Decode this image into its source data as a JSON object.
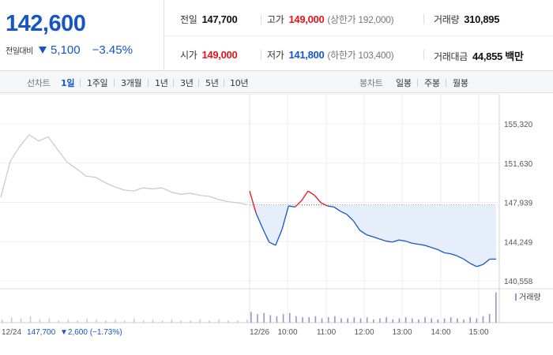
{
  "summary": {
    "current_price": "142,600",
    "change_label": "전일대비",
    "change_value": "5,100",
    "change_percent": "−3.45%",
    "prev_close_label": "전일",
    "prev_close": "147,700",
    "open_label": "시가",
    "open": "149,000",
    "high_label": "고가",
    "high": "149,000",
    "upper_limit": "(상한가 192,000)",
    "low_label": "저가",
    "low": "141,800",
    "lower_limit": "(하한가 103,400)",
    "volume_label": "거래량",
    "volume": "310,895",
    "amount_label": "거래대금",
    "amount": "44,855 백만"
  },
  "periods": {
    "title": "선차트",
    "items": [
      "1일",
      "1주일",
      "3개월",
      "1년",
      "3년",
      "5년",
      "10년"
    ],
    "active": "1일"
  },
  "candles": {
    "title": "봉차트",
    "items": [
      "일봉",
      "주봉",
      "월봉"
    ]
  },
  "colors": {
    "up": "#e3141c",
    "down": "#1655c6",
    "prev_day_line": "#c8c8c8",
    "fill": "#e6eefb"
  },
  "chart_data": {
    "type": "line",
    "y_ticks": [
      "155,320",
      "151,630",
      "147,939",
      "144,249",
      "140,558"
    ],
    "ylim": [
      140558,
      155320
    ],
    "prev_close_ref": 147700,
    "x_ticks": [
      "12/26",
      "10:00",
      "11:00",
      "12:00",
      "13:00",
      "14:00",
      "15:00"
    ],
    "prev_day": {
      "date": "12/24",
      "close": "147,700",
      "change": "▼2,600 (−1.73%)",
      "series": [
        148400,
        151800,
        153200,
        154300,
        153700,
        154100,
        152900,
        151700,
        151100,
        150400,
        150300,
        149800,
        149400,
        149100,
        149000,
        149300,
        149200,
        149300,
        148900,
        148700,
        148800,
        148600,
        148500,
        148200,
        148000,
        147900,
        147700
      ]
    },
    "today": {
      "series": [
        149000,
        146900,
        145500,
        144200,
        143900,
        145400,
        147600,
        147500,
        148100,
        149000,
        148600,
        147900,
        147600,
        147500,
        147100,
        146800,
        146200,
        145300,
        144900,
        144700,
        144500,
        144300,
        144200,
        144400,
        144300,
        144100,
        144000,
        143900,
        143700,
        143500,
        143200,
        143100,
        142900,
        142600,
        142200,
        141900,
        142100,
        142600,
        142600
      ]
    },
    "volume_label": "거래량",
    "volume": {
      "prev_day": [
        3,
        5,
        4,
        6,
        3,
        4,
        2,
        3,
        2,
        4,
        3,
        2,
        3,
        2,
        4,
        2,
        3,
        2,
        3,
        2,
        2,
        3,
        2,
        3,
        2,
        2,
        3
      ],
      "today": [
        10,
        8,
        9,
        7,
        6,
        8,
        9,
        6,
        5,
        5,
        6,
        4,
        5,
        6,
        4,
        4,
        5,
        4,
        5,
        3,
        4,
        5,
        3,
        4,
        5,
        4,
        3,
        5,
        4,
        3,
        4,
        5,
        4,
        3,
        5,
        4,
        6,
        8,
        28
      ]
    }
  }
}
